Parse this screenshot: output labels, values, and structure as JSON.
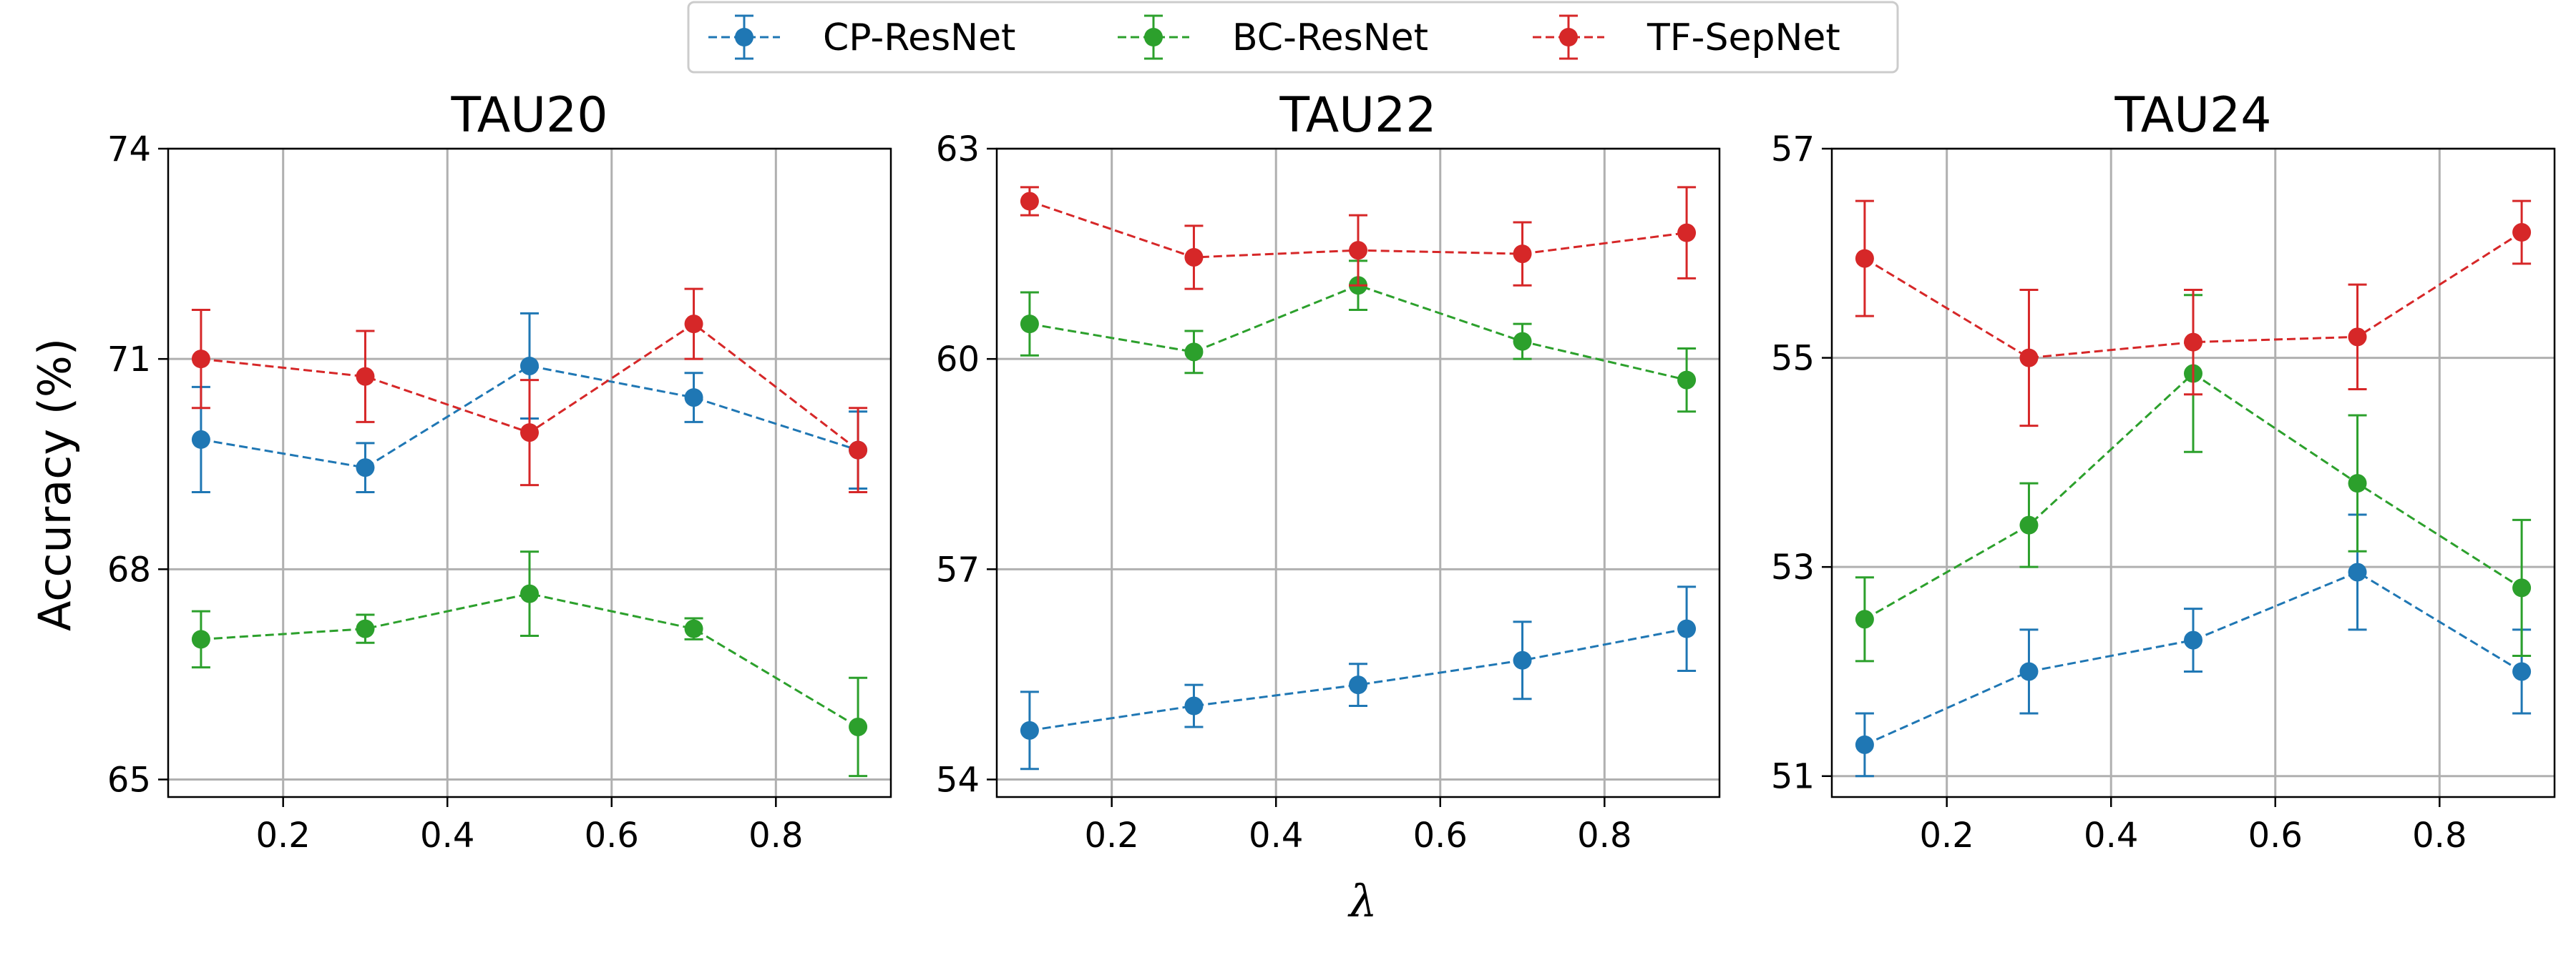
{
  "chart_data": {
    "type": "line",
    "xlabel": "λ",
    "ylabel": "Accuracy (%)",
    "x_ticks": [
      "0.2",
      "0.4",
      "0.6",
      "0.8"
    ],
    "x_tick_values": [
      0.2,
      0.4,
      0.6,
      0.8
    ],
    "xlim": [
      0.06,
      0.94
    ],
    "grid": true,
    "legend": {
      "placement": "top-center",
      "entries": [
        "CP-ResNet",
        "BC-ResNet",
        "TF-SepNet"
      ]
    },
    "colors": {
      "CP-ResNet": "#1f77b4",
      "BC-ResNet": "#2ca02c",
      "TF-SepNet": "#d62728",
      "grid": "#b0b0b0"
    },
    "panels": [
      {
        "title": "TAU20",
        "ylim": [
          64.75,
          74.0
        ],
        "y_ticks": [
          "65",
          "68",
          "71",
          "74"
        ],
        "y_tick_values": [
          65,
          68,
          71,
          74
        ],
        "x": [
          0.1,
          0.3,
          0.5,
          0.7,
          0.9
        ],
        "series": [
          {
            "name": "CP-ResNet",
            "values": [
              69.85,
              69.45,
              70.9,
              70.45,
              69.7
            ],
            "err": [
              0.75,
              0.35,
              0.75,
              0.35,
              0.55
            ]
          },
          {
            "name": "BC-ResNet",
            "values": [
              67.0,
              67.15,
              67.65,
              67.15,
              65.75
            ],
            "err": [
              0.4,
              0.2,
              0.6,
              0.15,
              0.7
            ]
          },
          {
            "name": "TF-SepNet",
            "values": [
              71.0,
              70.75,
              69.95,
              71.5,
              69.7
            ],
            "err": [
              0.7,
              0.65,
              0.75,
              0.5,
              0.6
            ]
          }
        ]
      },
      {
        "title": "TAU22",
        "ylim": [
          53.75,
          63.0
        ],
        "y_ticks": [
          "54",
          "57",
          "60",
          "63"
        ],
        "y_tick_values": [
          54,
          57,
          60,
          63
        ],
        "x": [
          0.1,
          0.3,
          0.5,
          0.7,
          0.9
        ],
        "series": [
          {
            "name": "CP-ResNet",
            "values": [
              54.7,
              55.05,
              55.35,
              55.7,
              56.15
            ],
            "err": [
              0.55,
              0.3,
              0.3,
              0.55,
              0.6
            ]
          },
          {
            "name": "BC-ResNet",
            "values": [
              60.5,
              60.1,
              61.05,
              60.25,
              59.7
            ],
            "err": [
              0.45,
              0.3,
              0.35,
              0.25,
              0.45
            ]
          },
          {
            "name": "TF-SepNet",
            "values": [
              62.25,
              61.45,
              61.55,
              61.5,
              61.8
            ],
            "err": [
              0.2,
              0.45,
              0.5,
              0.45,
              0.65
            ]
          }
        ]
      },
      {
        "title": "TAU24",
        "ylim": [
          50.8,
          57.0
        ],
        "y_ticks": [
          "51",
          "53",
          "55",
          "57"
        ],
        "y_tick_values": [
          51,
          53,
          55,
          57
        ],
        "x": [
          0.1,
          0.3,
          0.5,
          0.7,
          0.9
        ],
        "series": [
          {
            "name": "CP-ResNet",
            "values": [
              51.3,
              52.0,
              52.3,
              52.95,
              52.0
            ],
            "err": [
              0.3,
              0.4,
              0.3,
              0.55,
              0.4
            ]
          },
          {
            "name": "BC-ResNet",
            "values": [
              52.5,
              53.4,
              54.85,
              53.8,
              52.8
            ],
            "err": [
              0.4,
              0.4,
              0.75,
              0.65,
              0.65
            ]
          },
          {
            "name": "TF-SepNet",
            "values": [
              55.95,
              55.0,
              55.15,
              55.2,
              56.2
            ],
            "err": [
              0.55,
              0.65,
              0.5,
              0.5,
              0.3
            ]
          }
        ]
      }
    ]
  }
}
